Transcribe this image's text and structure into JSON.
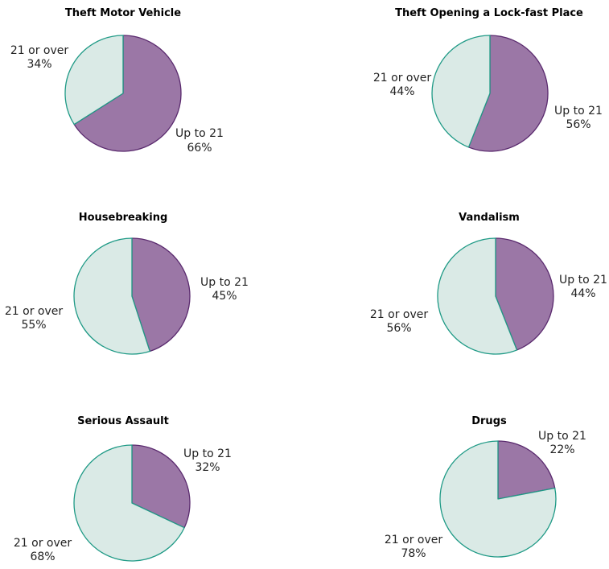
{
  "colors": {
    "up_fill": "#9b77a6",
    "up_stroke": "#5a2a6e",
    "over_fill": "#daeae6",
    "over_stroke": "#1f9a86"
  },
  "chart_data": [
    {
      "type": "pie",
      "title": "Theft Motor Vehicle",
      "slices": [
        {
          "label": "Up to 21",
          "pct_text": "66%",
          "value": 66
        },
        {
          "label": "21 or over",
          "pct_text": "34%",
          "value": 34
        }
      ]
    },
    {
      "type": "pie",
      "title": "Theft Opening a Lock-fast Place",
      "slices": [
        {
          "label": "Up to 21",
          "pct_text": "56%",
          "value": 56
        },
        {
          "label": "21 or over",
          "pct_text": "44%",
          "value": 44
        }
      ]
    },
    {
      "type": "pie",
      "title": "Housebreaking",
      "slices": [
        {
          "label": "Up to 21",
          "pct_text": "45%",
          "value": 45
        },
        {
          "label": "21 or over",
          "pct_text": "55%",
          "value": 55
        }
      ]
    },
    {
      "type": "pie",
      "title": "Vandalism",
      "slices": [
        {
          "label": "Up to 21",
          "pct_text": "44%",
          "value": 44
        },
        {
          "label": "21 or over",
          "pct_text": "56%",
          "value": 56
        }
      ]
    },
    {
      "type": "pie",
      "title": "Serious Assault",
      "slices": [
        {
          "label": "Up to 21",
          "pct_text": "32%",
          "value": 32
        },
        {
          "label": "21 or over",
          "pct_text": "68%",
          "value": 68
        }
      ]
    },
    {
      "type": "pie",
      "title": "Drugs",
      "slices": [
        {
          "label": "Up to 21",
          "pct_text": "22%",
          "value": 22
        },
        {
          "label": "21 or over",
          "pct_text": "78%",
          "value": 78
        }
      ]
    }
  ]
}
